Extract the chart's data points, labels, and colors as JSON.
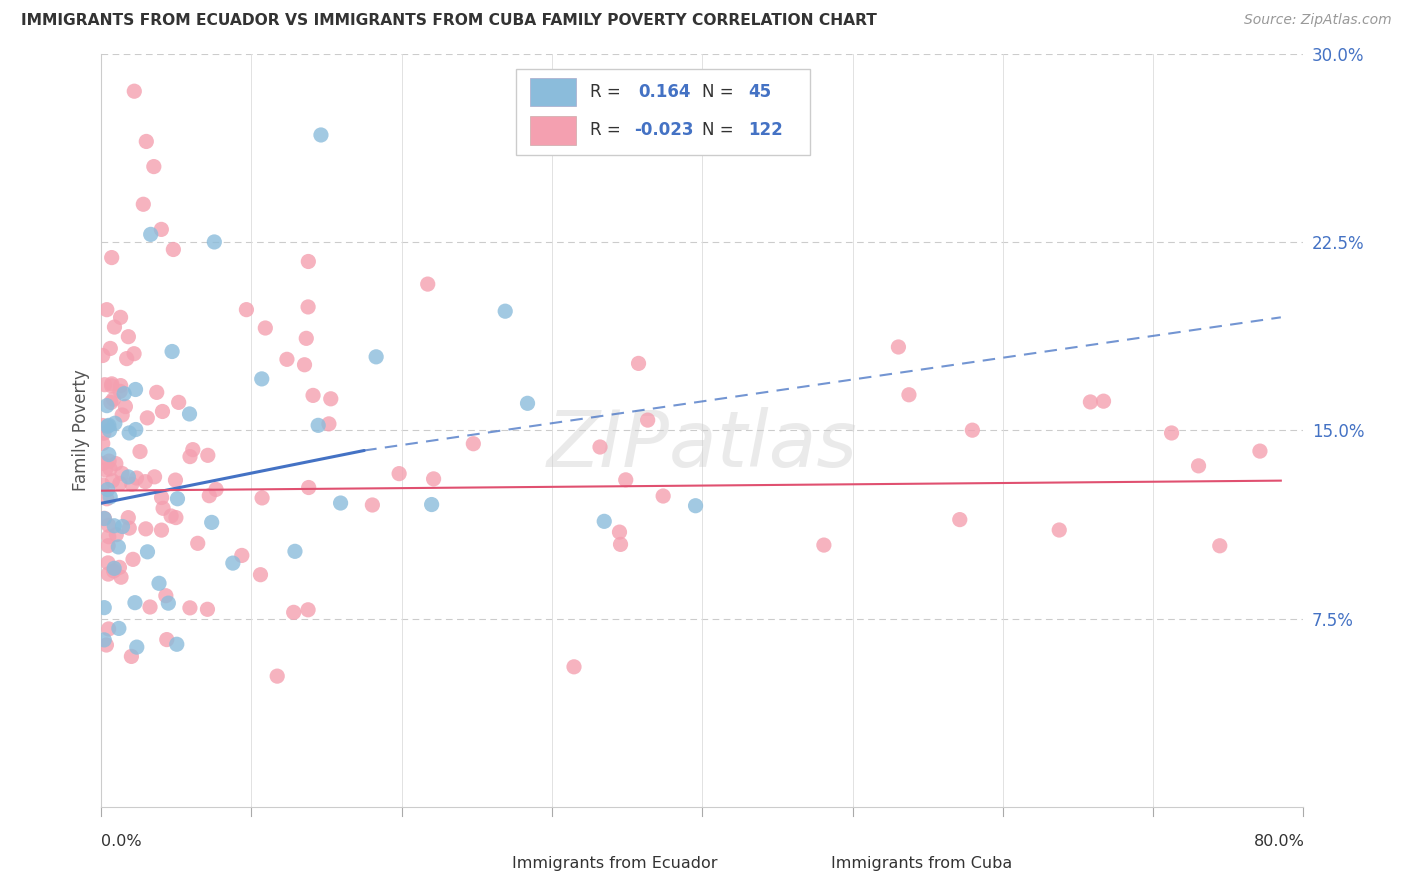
{
  "title": "IMMIGRANTS FROM ECUADOR VS IMMIGRANTS FROM CUBA FAMILY POVERTY CORRELATION CHART",
  "source": "Source: ZipAtlas.com",
  "ylabel": "Family Poverty",
  "x_min": 0.0,
  "x_max": 0.8,
  "y_min": 0.0,
  "y_max": 0.3,
  "y_ticks": [
    0.075,
    0.15,
    0.225,
    0.3
  ],
  "y_tick_labels": [
    "7.5%",
    "15.0%",
    "22.5%",
    "30.0%"
  ],
  "watermark": "ZIPatlas",
  "legend_ecuador_r": "0.164",
  "legend_ecuador_n": "45",
  "legend_cuba_r": "-0.023",
  "legend_cuba_n": "122",
  "color_ecuador": "#8bbcdb",
  "color_cuba": "#f4a0b0",
  "trendline_ecuador_color": "#4472c4",
  "trendline_cuba_color": "#e05070",
  "grid_color": "#cccccc",
  "right_label_color": "#4472c4",
  "title_color": "#333333",
  "source_color": "#999999",
  "legend_text_color": "#333333",
  "legend_value_color": "#4472c4"
}
